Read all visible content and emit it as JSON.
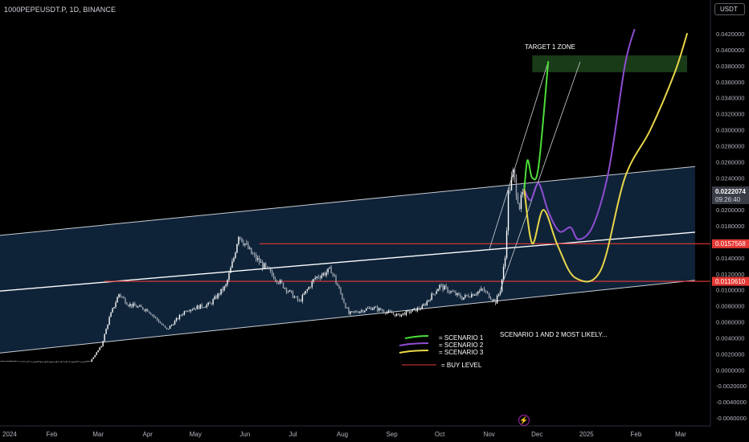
{
  "header": {
    "symbol": "1000PEPEUSDT.P, 1D, BINANCE",
    "currency_button": "USDT"
  },
  "annotations": {
    "target_zone": "TARGET 1 ZONE",
    "most_likely": "SCENARIO 1 AND 2 MOST LIKELY...",
    "legend": [
      {
        "label": "= SCENARIO 1",
        "color": "#4cdd38"
      },
      {
        "label": "= SCENARIO 2",
        "color": "#8e4dd1"
      },
      {
        "label": "= SCENARIO 3",
        "color": "#e8d64a"
      },
      {
        "label": "= BUY LEVEL",
        "color": "#d83131"
      }
    ]
  },
  "price_tags": {
    "current_price": "0.0222074",
    "countdown": "09:26:40",
    "buy_level_1": "0.0157568",
    "buy_level_2": "0.0110610"
  },
  "colors": {
    "background": "#000000",
    "channel_fill": "#0e2338",
    "candle": "#ffffff",
    "buy_line": "#e53935",
    "target_fill": "#2e6b2a",
    "scenario1": "#4cdd38",
    "scenario2": "#8e4dd1",
    "scenario3": "#e8d64a"
  },
  "chart_data": {
    "type": "candlestick",
    "y_axis": {
      "ticks": [
        "0.0420000",
        "0.0400000",
        "0.0380000",
        "0.0360000",
        "0.0340000",
        "0.0320000",
        "0.0300000",
        "0.0280000",
        "0.0260000",
        "0.0240000",
        "0.0220000",
        "0.0200000",
        "0.0180000",
        "0.0160000",
        "0.0140000",
        "0.0120000",
        "0.0100000",
        "0.0080000",
        "0.0060000",
        "0.0040000",
        "0.0020000",
        "0.0000000",
        "-0.0020000",
        "-0.0040000",
        "-0.0060000"
      ],
      "tick_values": [
        0.042,
        0.04,
        0.038,
        0.036,
        0.034,
        0.032,
        0.03,
        0.028,
        0.026,
        0.024,
        0.022,
        0.02,
        0.018,
        0.016,
        0.014,
        0.012,
        0.01,
        0.008,
        0.006,
        0.004,
        0.002,
        0.0,
        -0.002,
        -0.004,
        -0.006
      ]
    },
    "x_axis": {
      "ticks": [
        "2024",
        "Feb",
        "Mar",
        "Apr",
        "May",
        "Jun",
        "Jul",
        "Aug",
        "Sep",
        "Oct",
        "Nov",
        "Dec",
        "2025",
        "Feb",
        "Mar"
      ],
      "tick_dates": [
        "2024-01-01",
        "2024-02-01",
        "2024-03-01",
        "2024-04-01",
        "2024-05-01",
        "2024-06-01",
        "2024-07-01",
        "2024-08-01",
        "2024-09-01",
        "2024-10-01",
        "2024-11-01",
        "2024-12-01",
        "2025-01-01",
        "2025-02-01",
        "2025-03-01"
      ]
    },
    "price_path": [
      [
        "2023-12-01",
        0.00115
      ],
      [
        "2024-01-01",
        0.0011
      ],
      [
        "2024-02-01",
        0.001
      ],
      [
        "2024-02-25",
        0.00105
      ],
      [
        "2024-03-03",
        0.003
      ],
      [
        "2024-03-08",
        0.0065
      ],
      [
        "2024-03-14",
        0.0095
      ],
      [
        "2024-03-20",
        0.0082
      ],
      [
        "2024-04-01",
        0.0075
      ],
      [
        "2024-04-13",
        0.005
      ],
      [
        "2024-04-25",
        0.0075
      ],
      [
        "2024-05-10",
        0.0082
      ],
      [
        "2024-05-20",
        0.0105
      ],
      [
        "2024-05-25",
        0.014
      ],
      [
        "2024-05-28",
        0.017
      ],
      [
        "2024-06-05",
        0.0145
      ],
      [
        "2024-06-20",
        0.0115
      ],
      [
        "2024-07-05",
        0.0085
      ],
      [
        "2024-07-15",
        0.0115
      ],
      [
        "2024-07-25",
        0.0125
      ],
      [
        "2024-08-05",
        0.007
      ],
      [
        "2024-08-20",
        0.0078
      ],
      [
        "2024-09-05",
        0.0068
      ],
      [
        "2024-09-20",
        0.0078
      ],
      [
        "2024-10-01",
        0.0105
      ],
      [
        "2024-10-15",
        0.009
      ],
      [
        "2024-10-28",
        0.01
      ],
      [
        "2024-11-05",
        0.0085
      ],
      [
        "2024-11-08",
        0.01
      ],
      [
        "2024-11-11",
        0.014
      ],
      [
        "2024-11-13",
        0.022
      ],
      [
        "2024-11-16",
        0.0245
      ],
      [
        "2024-11-20",
        0.0205
      ],
      [
        "2024-11-23",
        0.0225
      ]
    ],
    "channel": {
      "upper": [
        [
          "2023-12-25",
          0.0167
        ],
        [
          "2025-03-10",
          0.0254
        ]
      ],
      "middle": [
        [
          "2023-12-01",
          0.00935
        ],
        [
          "2025-03-10",
          0.0172
        ]
      ],
      "lower": [
        [
          "2023-12-25",
          0.002
        ],
        [
          "2025-03-10",
          0.0112
        ]
      ]
    },
    "buy_levels": [
      0.0157568,
      0.011061
    ],
    "target_zone": {
      "start": "2024-11-28",
      "end": "2025-03-05",
      "low": 0.0372,
      "high": 0.0393
    },
    "scenarios": [
      {
        "name": "SCENARIO 1",
        "points": [
          [
            "2024-11-23",
            0.0225
          ],
          [
            "2024-11-25",
            0.0262
          ],
          [
            "2024-11-28",
            0.024
          ],
          [
            "2024-12-02",
            0.0255
          ],
          [
            "2024-12-08",
            0.0385
          ]
        ]
      },
      {
        "name": "SCENARIO 2",
        "points": [
          [
            "2024-11-23",
            0.0225
          ],
          [
            "2024-11-27",
            0.0212
          ],
          [
            "2024-12-02",
            0.0233
          ],
          [
            "2024-12-08",
            0.0198
          ],
          [
            "2024-12-15",
            0.0173
          ],
          [
            "2024-12-22",
            0.0178
          ],
          [
            "2024-12-27",
            0.0163
          ],
          [
            "2025-01-05",
            0.018
          ],
          [
            "2025-01-15",
            0.025
          ],
          [
            "2025-01-25",
            0.038
          ],
          [
            "2025-01-31",
            0.0425
          ]
        ]
      },
      {
        "name": "SCENARIO 3",
        "points": [
          [
            "2024-11-23",
            0.0225
          ],
          [
            "2024-11-28",
            0.0158
          ],
          [
            "2024-12-05",
            0.02
          ],
          [
            "2024-12-14",
            0.0155
          ],
          [
            "2024-12-25",
            0.0115
          ],
          [
            "2025-01-10",
            0.0125
          ],
          [
            "2025-01-25",
            0.024
          ],
          [
            "2025-02-10",
            0.03
          ],
          [
            "2025-02-25",
            0.037
          ],
          [
            "2025-03-05",
            0.042
          ]
        ]
      }
    ],
    "trend_lines": [
      {
        "from": [
          "2024-11-01",
          0.015
        ],
        "to": [
          "2024-12-08",
          0.0385
        ]
      },
      {
        "from": [
          "2024-11-08",
          0.01
        ],
        "to": [
          "2024-12-28",
          0.0385
        ]
      }
    ]
  }
}
